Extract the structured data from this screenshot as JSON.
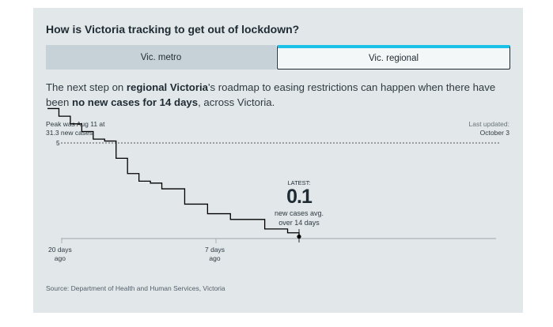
{
  "title": "How is Victoria tracking to get out of lockdown?",
  "tabs": {
    "metro": "Vic. metro",
    "regional": "Vic. regional"
  },
  "description": {
    "p1": "The next step on ",
    "b1": "regional Victoria",
    "p2": "'s roadmap to easing restrictions can happen when there have been ",
    "b2": "no new cases for 14 days",
    "p3": ", across Victoria."
  },
  "peak": {
    "line1": "Peak was Aug 11 at",
    "line2": "31.3 new cases"
  },
  "updated": {
    "line1": "Last updated:",
    "line2": "October 3"
  },
  "latest": {
    "label": "LATEST:",
    "value": "0.1",
    "sub1": "new cases avg.",
    "sub2": "over 14 days"
  },
  "source": "Source: Department of Health and Human Services, Victoria",
  "colors": {
    "accent": "#1bc1e6",
    "panel": "#e2e7ea",
    "line": "#000000"
  },
  "chart_data": {
    "type": "line",
    "threshold": {
      "value": 5,
      "label": "5"
    },
    "x_ticks": [
      {
        "days_ago": 20,
        "line1": "20 days",
        "line2": "ago"
      },
      {
        "days_ago": 7,
        "line1": "7 days",
        "line2": "ago"
      }
    ],
    "x": [
      -22,
      -21,
      -20,
      -19,
      -18,
      -17,
      -16,
      -15,
      -14,
      -13,
      -12,
      -11,
      -10,
      -9,
      -8,
      -7,
      -6,
      -5,
      -4,
      -3,
      -2,
      -1,
      0
    ],
    "values": [
      6.8,
      6.4,
      6.0,
      5.6,
      5.2,
      5.1,
      4.2,
      3.4,
      3.0,
      2.9,
      2.6,
      2.6,
      1.8,
      1.8,
      1.3,
      1.3,
      1.0,
      1.0,
      1.0,
      0.5,
      0.5,
      0.3,
      0.1
    ]
  }
}
